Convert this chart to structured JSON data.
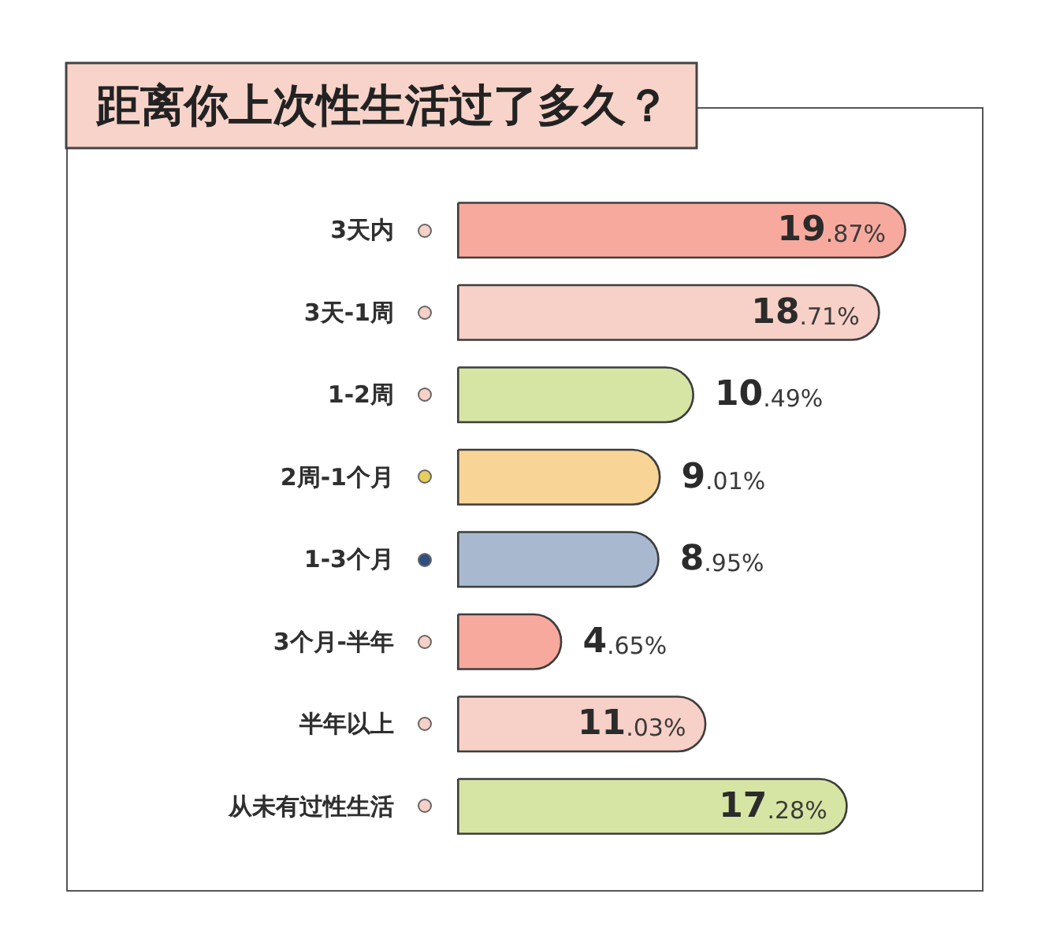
{
  "chart_data": {
    "type": "bar",
    "orientation": "horizontal",
    "title": "距离你上次性生活过了多久？",
    "categories": [
      "3天内",
      "3天-1周",
      "1-2周",
      "2周-1个月",
      "1-3个月",
      "3个月-半年",
      "半年以上",
      "从未有过性生活"
    ],
    "values": [
      19.87,
      18.71,
      10.49,
      9.01,
      8.95,
      4.65,
      11.03,
      17.28
    ],
    "colors": [
      "#f8a99d",
      "#f7d0c7",
      "#d6e5a4",
      "#f8d497",
      "#a8b9cf",
      "#f8a99d",
      "#f7d0c7",
      "#d6e5a4"
    ],
    "value_labels": [
      "19.87%",
      "18.71%",
      "10.49%",
      "9.01%",
      "8.95%",
      "4.65%",
      "11.03%",
      "17.28%"
    ],
    "tick_labels": "y"
  }
}
